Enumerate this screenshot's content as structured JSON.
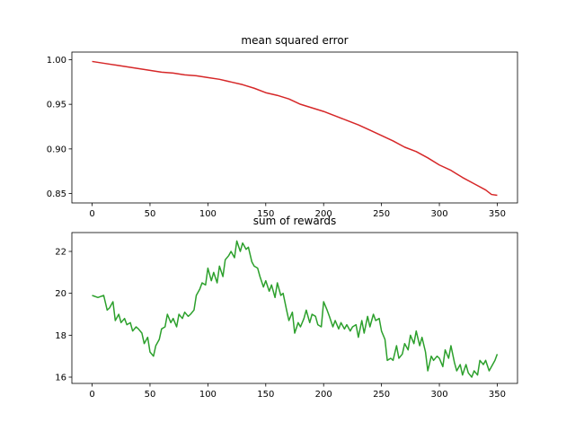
{
  "chart_data": [
    {
      "type": "line",
      "title": "mean squared error",
      "xlabel": "",
      "ylabel": "",
      "xlim": [
        -17.5,
        367.5
      ],
      "ylim": [
        0.8395,
        1.0085
      ],
      "xticks": [
        0,
        50,
        100,
        150,
        200,
        250,
        300,
        350
      ],
      "xtick_labels": [
        "0",
        "50",
        "100",
        "150",
        "200",
        "250",
        "300",
        "350"
      ],
      "yticks": [
        0.85,
        0.9,
        0.95,
        1.0
      ],
      "ytick_labels": [
        "0.85",
        "0.90",
        "0.95",
        "1.00"
      ],
      "grid": false,
      "series": [
        {
          "color": "#d62728",
          "x": [
            0,
            10,
            20,
            30,
            40,
            50,
            60,
            70,
            80,
            90,
            100,
            110,
            120,
            130,
            140,
            150,
            160,
            170,
            180,
            190,
            200,
            210,
            220,
            230,
            240,
            250,
            260,
            270,
            280,
            290,
            300,
            310,
            320,
            330,
            340,
            345,
            350
          ],
          "y": [
            0.998,
            0.996,
            0.994,
            0.992,
            0.99,
            0.988,
            0.986,
            0.985,
            0.983,
            0.982,
            0.98,
            0.978,
            0.975,
            0.972,
            0.968,
            0.963,
            0.96,
            0.956,
            0.95,
            0.946,
            0.942,
            0.937,
            0.932,
            0.927,
            0.921,
            0.915,
            0.909,
            0.902,
            0.897,
            0.89,
            0.882,
            0.876,
            0.868,
            0.861,
            0.854,
            0.849,
            0.848
          ]
        }
      ]
    },
    {
      "type": "line",
      "title": "sum of rewards",
      "xlabel": "",
      "ylabel": "",
      "xlim": [
        -17.5,
        367.5
      ],
      "ylim": [
        15.7,
        22.9
      ],
      "xticks": [
        0,
        50,
        100,
        150,
        200,
        250,
        300,
        350
      ],
      "xtick_labels": [
        "0",
        "50",
        "100",
        "150",
        "200",
        "250",
        "300",
        "350"
      ],
      "yticks": [
        16,
        18,
        20,
        22
      ],
      "ytick_labels": [
        "16",
        "18",
        "20",
        "22"
      ],
      "grid": false,
      "series": [
        {
          "color": "#2ca02c",
          "x": [
            0,
            5,
            10,
            13,
            15,
            18,
            20,
            23,
            25,
            28,
            30,
            33,
            35,
            38,
            40,
            43,
            45,
            48,
            50,
            53,
            55,
            58,
            60,
            63,
            65,
            68,
            70,
            73,
            75,
            78,
            80,
            83,
            85,
            88,
            90,
            93,
            95,
            98,
            100,
            103,
            105,
            108,
            110,
            113,
            115,
            118,
            120,
            123,
            125,
            128,
            130,
            133,
            135,
            138,
            140,
            143,
            145,
            148,
            150,
            153,
            155,
            158,
            160,
            163,
            165,
            168,
            170,
            173,
            175,
            178,
            180,
            183,
            185,
            188,
            190,
            193,
            195,
            198,
            200,
            203,
            205,
            208,
            210,
            213,
            215,
            218,
            220,
            223,
            225,
            228,
            230,
            233,
            235,
            238,
            240,
            243,
            245,
            248,
            250,
            253,
            255,
            258,
            260,
            263,
            265,
            268,
            270,
            273,
            275,
            278,
            280,
            283,
            285,
            288,
            290,
            293,
            295,
            298,
            300,
            303,
            305,
            308,
            310,
            313,
            315,
            318,
            320,
            323,
            325,
            328,
            330,
            333,
            335,
            338,
            340,
            343,
            345,
            348,
            350
          ],
          "y": [
            19.9,
            19.8,
            19.9,
            19.2,
            19.3,
            19.6,
            18.7,
            19.0,
            18.6,
            18.8,
            18.5,
            18.6,
            18.2,
            18.4,
            18.3,
            18.1,
            17.6,
            17.9,
            17.2,
            17.0,
            17.5,
            17.8,
            18.3,
            18.4,
            19.0,
            18.6,
            18.8,
            18.4,
            19.0,
            18.8,
            19.1,
            18.9,
            19.0,
            19.2,
            19.9,
            20.2,
            20.5,
            20.4,
            21.2,
            20.6,
            21.0,
            20.5,
            21.3,
            20.8,
            21.6,
            21.8,
            22.0,
            21.7,
            22.5,
            22.0,
            22.4,
            22.1,
            22.2,
            21.5,
            21.3,
            21.2,
            20.8,
            20.3,
            20.6,
            20.1,
            20.4,
            19.8,
            20.5,
            19.9,
            20.0,
            19.2,
            18.7,
            19.1,
            18.1,
            18.6,
            18.4,
            18.8,
            19.2,
            18.6,
            19.0,
            18.9,
            18.5,
            18.4,
            19.6,
            19.2,
            18.9,
            18.4,
            18.7,
            18.3,
            18.6,
            18.3,
            18.5,
            18.2,
            18.4,
            18.5,
            17.9,
            18.7,
            18.1,
            18.9,
            18.4,
            19.0,
            18.7,
            18.8,
            18.2,
            17.8,
            16.8,
            16.9,
            16.8,
            17.5,
            16.9,
            17.1,
            17.6,
            17.3,
            18.0,
            17.6,
            18.2,
            17.5,
            17.9,
            17.2,
            16.3,
            17.0,
            16.8,
            17.0,
            16.9,
            16.5,
            17.3,
            16.9,
            17.5,
            16.7,
            16.3,
            16.6,
            16.1,
            16.6,
            16.2,
            16.0,
            16.3,
            16.1,
            16.8,
            16.6,
            16.8,
            16.3,
            16.5,
            16.8,
            17.1
          ]
        }
      ]
    }
  ]
}
